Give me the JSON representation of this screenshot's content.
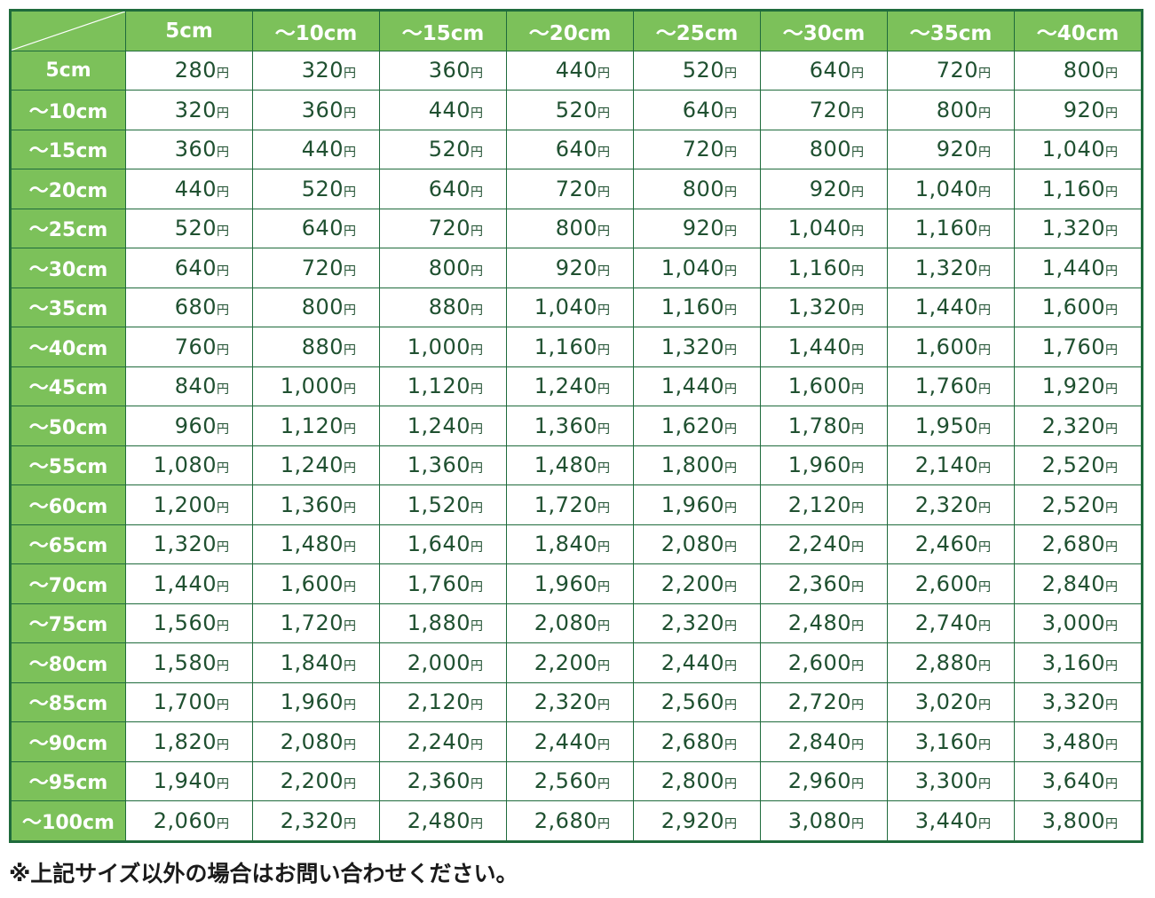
{
  "columns": [
    "5cm",
    "〜10cm",
    "〜15cm",
    "〜20cm",
    "〜25cm",
    "〜30cm",
    "〜35cm",
    "〜40cm"
  ],
  "unit": "円",
  "rows": [
    {
      "label": "5cm",
      "values": [
        "280",
        "320",
        "360",
        "440",
        "520",
        "640",
        "720",
        "800"
      ]
    },
    {
      "label": "〜10cm",
      "values": [
        "320",
        "360",
        "440",
        "520",
        "640",
        "720",
        "800",
        "920"
      ]
    },
    {
      "label": "〜15cm",
      "values": [
        "360",
        "440",
        "520",
        "640",
        "720",
        "800",
        "920",
        "1,040"
      ]
    },
    {
      "label": "〜20cm",
      "values": [
        "440",
        "520",
        "640",
        "720",
        "800",
        "920",
        "1,040",
        "1,160"
      ]
    },
    {
      "label": "〜25cm",
      "values": [
        "520",
        "640",
        "720",
        "800",
        "920",
        "1,040",
        "1,160",
        "1,320"
      ]
    },
    {
      "label": "〜30cm",
      "values": [
        "640",
        "720",
        "800",
        "920",
        "1,040",
        "1,160",
        "1,320",
        "1,440"
      ]
    },
    {
      "label": "〜35cm",
      "values": [
        "680",
        "800",
        "880",
        "1,040",
        "1,160",
        "1,320",
        "1,440",
        "1,600"
      ]
    },
    {
      "label": "〜40cm",
      "values": [
        "760",
        "880",
        "1,000",
        "1,160",
        "1,320",
        "1,440",
        "1,600",
        "1,760"
      ]
    },
    {
      "label": "〜45cm",
      "values": [
        "840",
        "1,000",
        "1,120",
        "1,240",
        "1,440",
        "1,600",
        "1,760",
        "1,920"
      ]
    },
    {
      "label": "〜50cm",
      "values": [
        "960",
        "1,120",
        "1,240",
        "1,360",
        "1,620",
        "1,780",
        "1,950",
        "2,320"
      ]
    },
    {
      "label": "〜55cm",
      "values": [
        "1,080",
        "1,240",
        "1,360",
        "1,480",
        "1,800",
        "1,960",
        "2,140",
        "2,520"
      ]
    },
    {
      "label": "〜60cm",
      "values": [
        "1,200",
        "1,360",
        "1,520",
        "1,720",
        "1,960",
        "2,120",
        "2,320",
        "2,520"
      ]
    },
    {
      "label": "〜65cm",
      "values": [
        "1,320",
        "1,480",
        "1,640",
        "1,840",
        "2,080",
        "2,240",
        "2,460",
        "2,680"
      ]
    },
    {
      "label": "〜70cm",
      "values": [
        "1,440",
        "1,600",
        "1,760",
        "1,960",
        "2,200",
        "2,360",
        "2,600",
        "2,840"
      ]
    },
    {
      "label": "〜75cm",
      "values": [
        "1,560",
        "1,720",
        "1,880",
        "2,080",
        "2,320",
        "2,480",
        "2,740",
        "3,000"
      ]
    },
    {
      "label": "〜80cm",
      "values": [
        "1,580",
        "1,840",
        "2,000",
        "2,200",
        "2,440",
        "2,600",
        "2,880",
        "3,160"
      ]
    },
    {
      "label": "〜85cm",
      "values": [
        "1,700",
        "1,960",
        "2,120",
        "2,320",
        "2,560",
        "2,720",
        "3,020",
        "3,320"
      ]
    },
    {
      "label": "〜90cm",
      "values": [
        "1,820",
        "2,080",
        "2,240",
        "2,440",
        "2,680",
        "2,840",
        "3,160",
        "3,480"
      ]
    },
    {
      "label": "〜95cm",
      "values": [
        "1,940",
        "2,200",
        "2,360",
        "2,560",
        "2,800",
        "2,960",
        "3,300",
        "3,640"
      ]
    },
    {
      "label": "〜100cm",
      "values": [
        "2,060",
        "2,320",
        "2,480",
        "2,680",
        "2,920",
        "3,080",
        "3,440",
        "3,800"
      ]
    }
  ],
  "footnote": "※上記サイズ以外の場合はお問い合わせください。",
  "colors": {
    "header_green": "#7cc15a",
    "border_green": "#1f6b3c",
    "text_green": "#1f5030"
  }
}
